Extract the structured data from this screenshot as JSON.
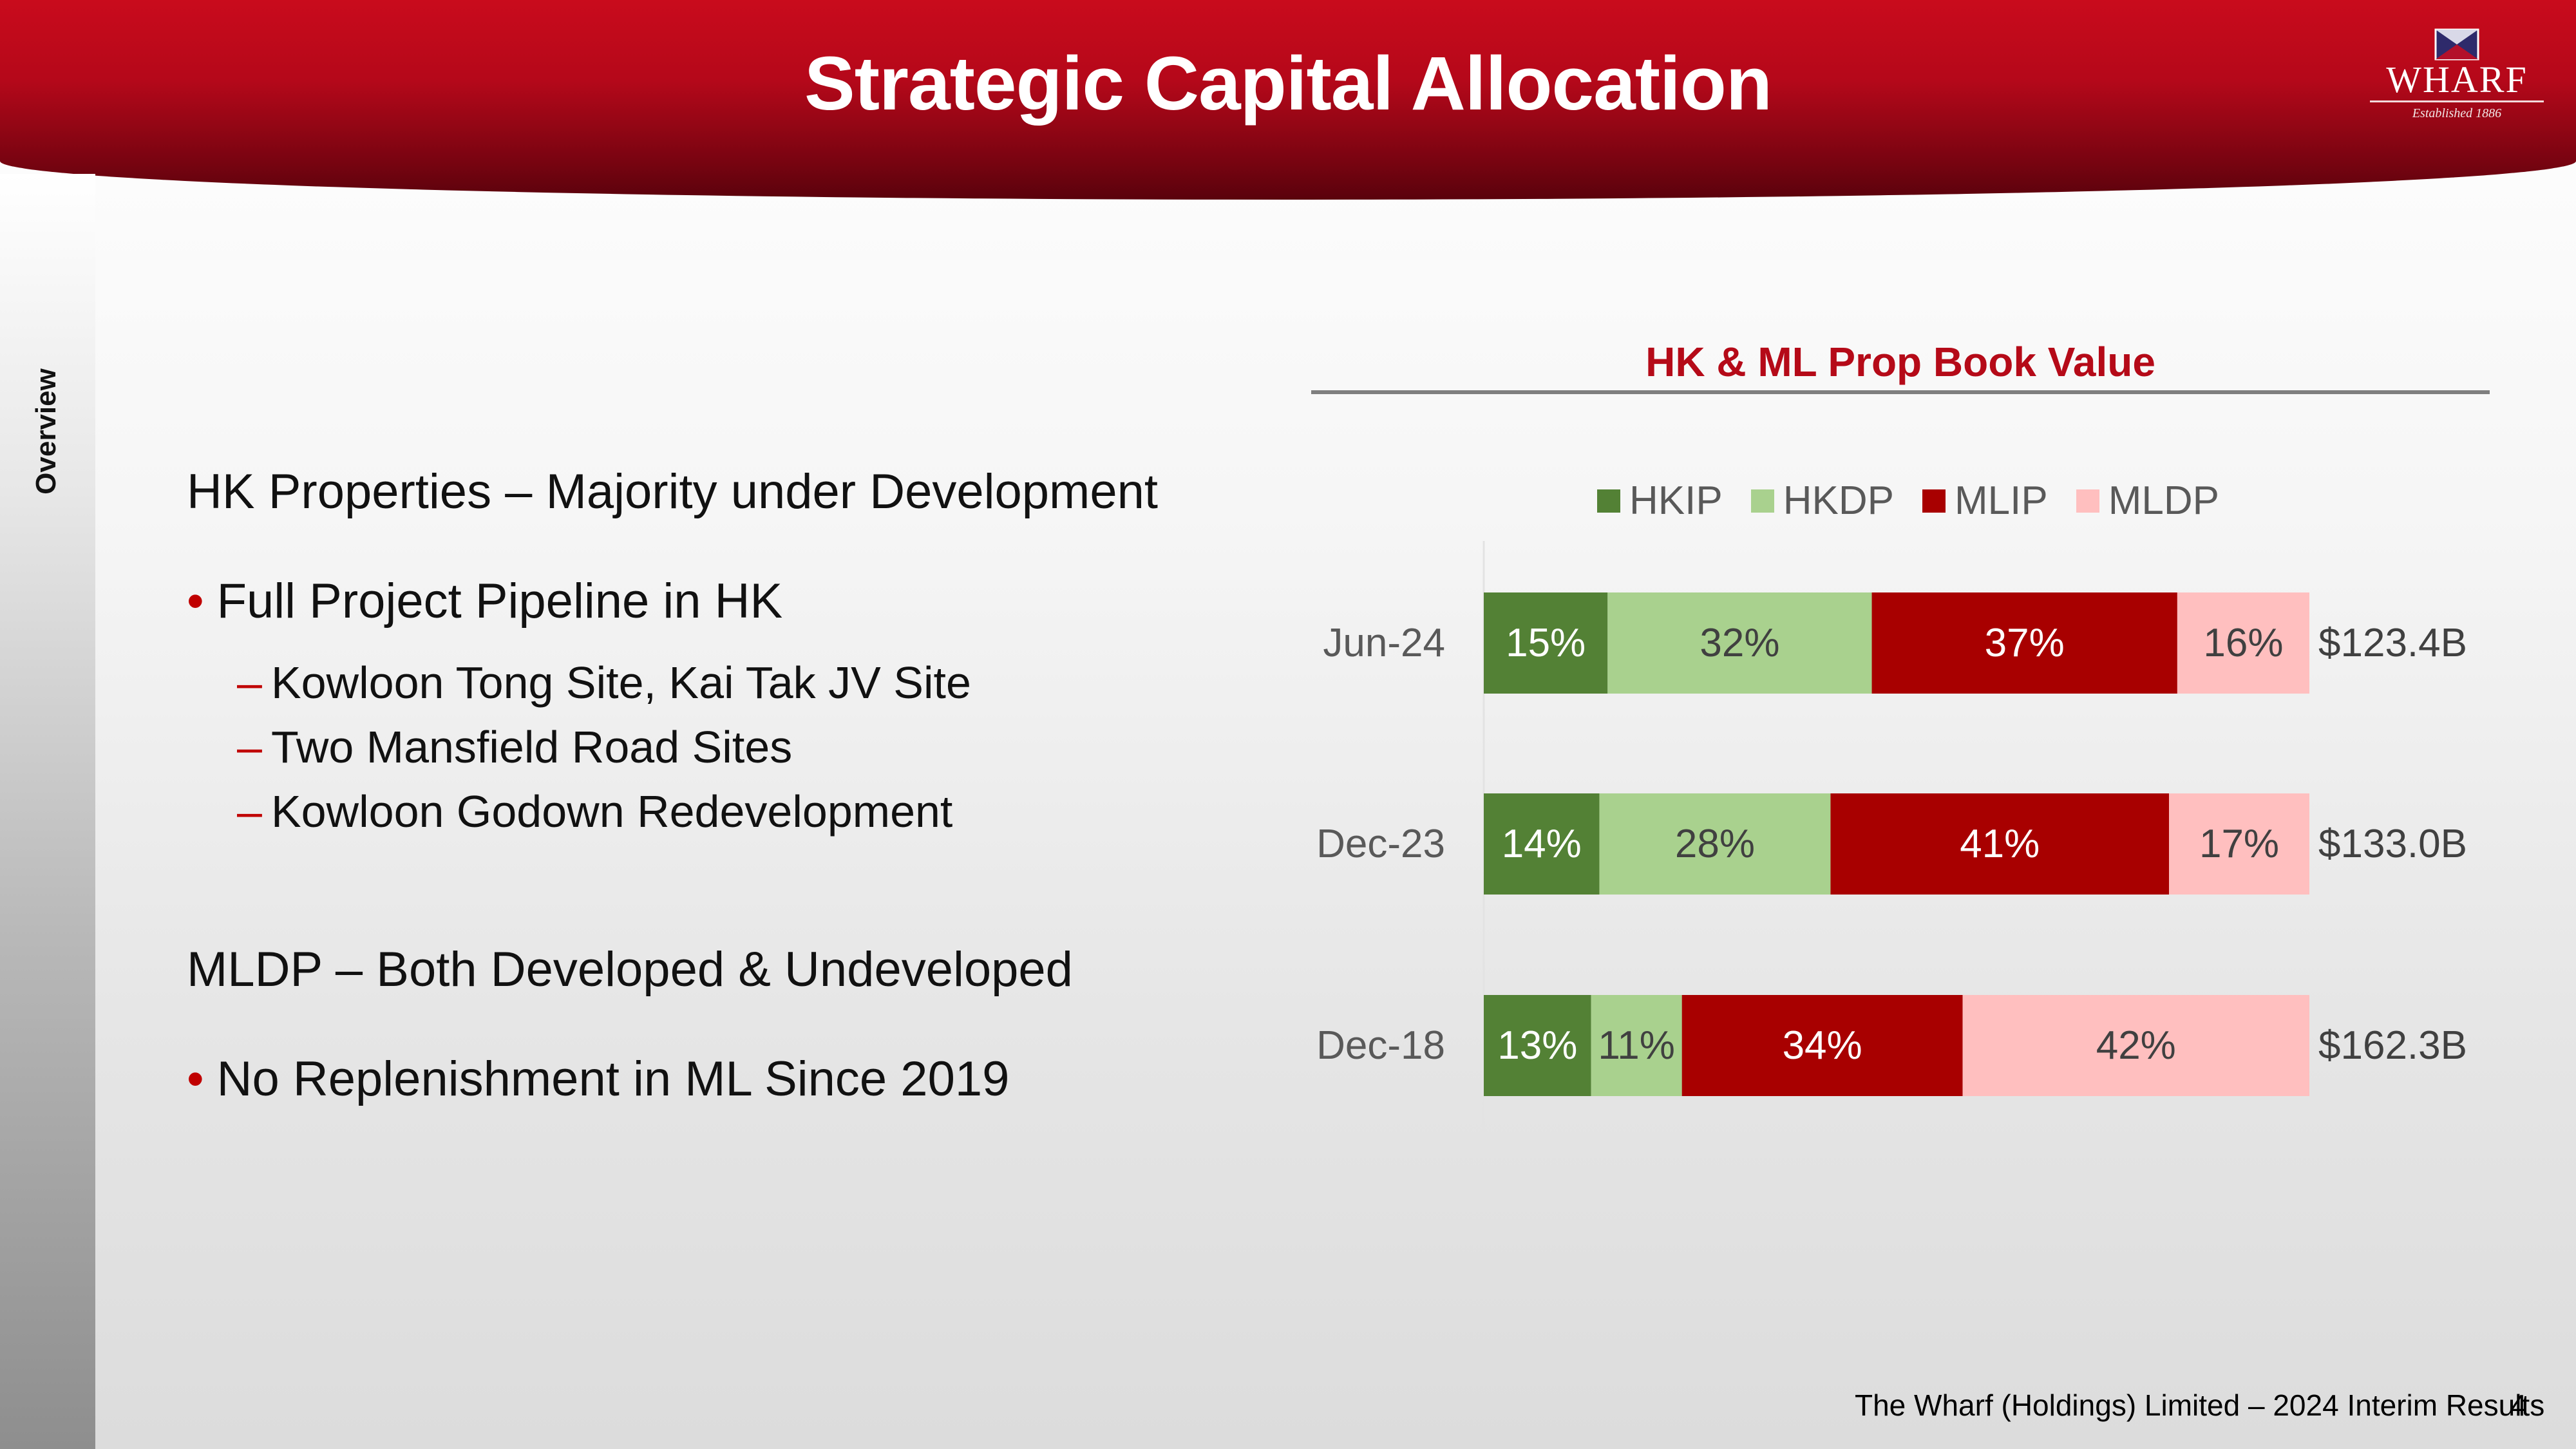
{
  "header": {
    "title": "Strategic Capital Allocation"
  },
  "logo": {
    "name": "WHARF",
    "established": "Established 1886"
  },
  "sidebar": {
    "section": "Overview"
  },
  "left": {
    "heading1": "HK Properties – Majority under Development",
    "bullet1": "Full Project Pipeline in HK",
    "subitems": [
      "Kowloon Tong Site, Kai Tak JV Site",
      "Two Mansfield Road Sites",
      "Kowloon Godown Redevelopment"
    ],
    "heading2": "MLDP – Both Developed & Undeveloped",
    "bullet2": "No Replenishment in ML Since 2019"
  },
  "chart_data": {
    "type": "bar",
    "orientation": "horizontal",
    "stacked": "100%",
    "title": "HK & ML Prop Book Value",
    "categories": [
      "Jun-24",
      "Dec-23",
      "Dec-18"
    ],
    "series": [
      {
        "name": "HKIP",
        "color": "#538135",
        "label_color": "#ffffff",
        "values": [
          15,
          14,
          13
        ]
      },
      {
        "name": "HKDP",
        "color": "#a9d18e",
        "label_color": "#404040",
        "values": [
          32,
          28,
          11
        ]
      },
      {
        "name": "MLIP",
        "color": "#a80000",
        "label_color": "#ffffff",
        "values": [
          37,
          41,
          34
        ]
      },
      {
        "name": "MLDP",
        "color": "#ffbfbf",
        "label_color": "#404040",
        "values": [
          16,
          17,
          42
        ]
      }
    ],
    "data_label_suffix": "%",
    "totals": [
      "$123.4B",
      "$133.0B",
      "$162.3B"
    ],
    "legend_position": "top",
    "grid": false
  },
  "footer": {
    "text": "The Wharf (Holdings) Limited – 2024 Interim Results",
    "page": "4"
  }
}
